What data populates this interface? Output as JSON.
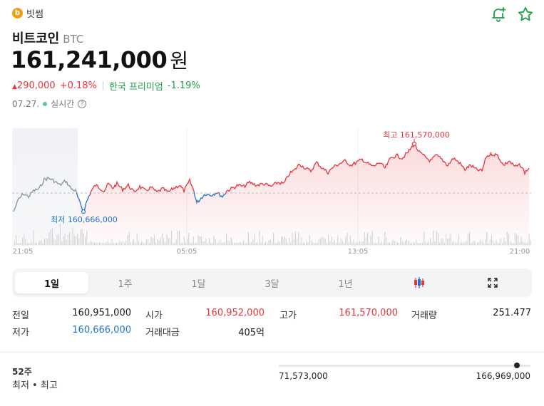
{
  "exchange": {
    "name": "빗썸",
    "logo_letter": "b"
  },
  "actions": {
    "alert_icon": "bell-plus-icon",
    "favorite_icon": "star-icon"
  },
  "coin": {
    "name": "비트코인",
    "symbol": "BTC"
  },
  "price": {
    "value": "161,241,000",
    "unit": "원"
  },
  "change": {
    "amount": "290,000",
    "percent": "+0.18%",
    "premium_label": "한국 프리미엄",
    "premium_value": "-1.19%"
  },
  "status": {
    "date": "07.27.",
    "live_label": "실시간"
  },
  "chart": {
    "x_ticks": [
      "21:05",
      "05:05",
      "13:05",
      "21:00"
    ],
    "high_label": "최고 161,570,000",
    "low_label": "최저 160,666,000",
    "colors": {
      "up": "#e8343c",
      "down": "#1e73d6",
      "prev": "#8a8f98"
    }
  },
  "chart_data": {
    "type": "line",
    "x_ticks": [
      "21:05",
      "05:05",
      "13:05",
      "21:00"
    ],
    "high": 161570000,
    "low": 160666000,
    "prev_close": 160951000,
    "annotations": [
      "최고 161,570,000",
      "최저 160,666,000"
    ]
  },
  "periods": {
    "tabs": [
      "1일",
      "1주",
      "1달",
      "3달",
      "1년"
    ],
    "active": "1일",
    "candle_icon": "candlestick-icon",
    "expand_icon": "expand-icon"
  },
  "stats": {
    "prev_close": {
      "label": "전일",
      "value": "160,951,000"
    },
    "open": {
      "label": "시가",
      "value": "160,952,000"
    },
    "high": {
      "label": "고가",
      "value": "161,570,000"
    },
    "volume": {
      "label": "거래량",
      "value": "251.477"
    },
    "low": {
      "label": "저가",
      "value": "160,666,000"
    },
    "trade_value": {
      "label": "거래대금",
      "value": "405억"
    }
  },
  "week52": {
    "title": "52주",
    "subtitle": "최저 • 최고",
    "low": "71,573,000",
    "high": "166,969,000"
  }
}
